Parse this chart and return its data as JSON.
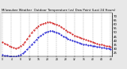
{
  "title": "Milwaukee Weather  Outdoor Temperature (vs) Dew Point (Last 24 Hours)",
  "bg_color": "#e8e8e8",
  "plot_bg": "#ffffff",
  "temp_color": "#cc0000",
  "dew_color": "#0000cc",
  "grid_color": "#999999",
  "border_color": "#000000",
  "ylim": [
    20,
    75
  ],
  "ytick_vals": [
    25,
    30,
    35,
    40,
    45,
    50,
    55,
    60,
    65,
    70
  ],
  "ytick_labels": [
    "25",
    "30",
    "35",
    "40",
    "45",
    "50",
    "55",
    "60",
    "65",
    "70"
  ],
  "num_points": 49,
  "temp_values": [
    38,
    36,
    35,
    33,
    32,
    31,
    30,
    31,
    33,
    35,
    38,
    42,
    46,
    50,
    53,
    56,
    58,
    60,
    61,
    62,
    63,
    63,
    62,
    61,
    60,
    59,
    57,
    55,
    53,
    51,
    50,
    48,
    46,
    45,
    44,
    43,
    42,
    41,
    40,
    39,
    38,
    37,
    36,
    35,
    35,
    34,
    33,
    33,
    32
  ],
  "dew_values": [
    22,
    21,
    21,
    20,
    20,
    20,
    20,
    21,
    22,
    24,
    26,
    29,
    32,
    35,
    38,
    41,
    44,
    46,
    48,
    50,
    51,
    52,
    52,
    51,
    50,
    49,
    47,
    45,
    44,
    42,
    41,
    40,
    39,
    38,
    37,
    36,
    35,
    35,
    34,
    34,
    33,
    33,
    32,
    32,
    31,
    31,
    30,
    30,
    29
  ],
  "grid_positions": [
    0,
    4,
    8,
    12,
    16,
    20,
    24,
    28,
    32,
    36,
    40,
    44,
    48
  ],
  "xtick_step": 4,
  "title_fontsize": 2.8,
  "ytick_fontsize": 2.8,
  "xtick_fontsize": 2.2,
  "line_width": 0.7,
  "marker_size": 0.9
}
